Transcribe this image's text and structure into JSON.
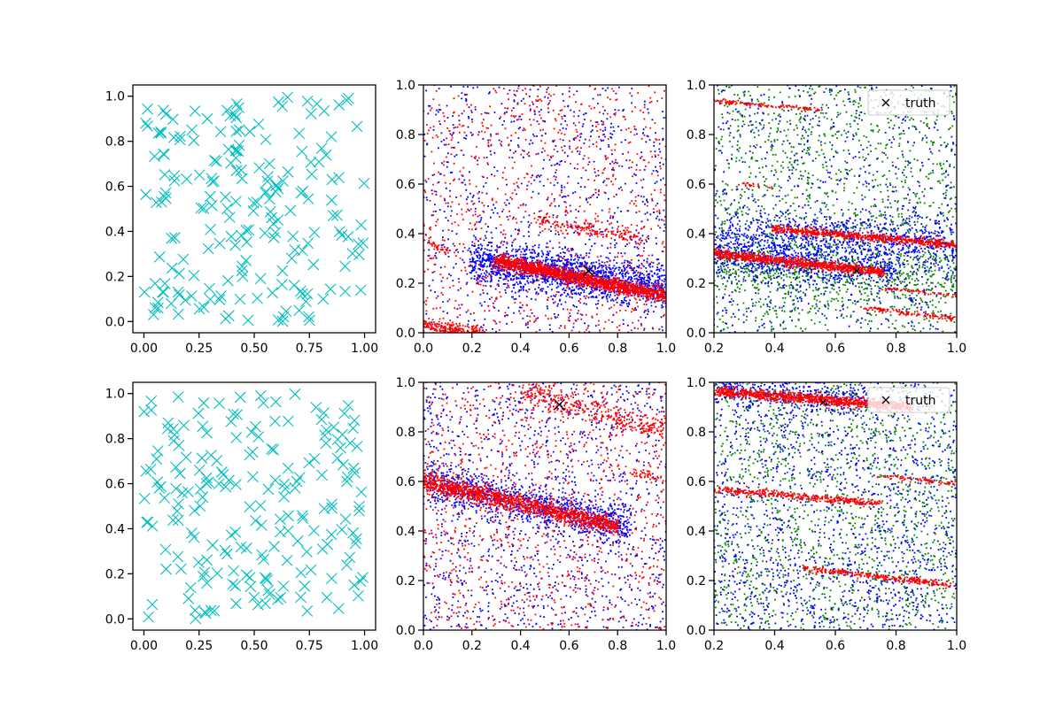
{
  "chart_data": [
    {
      "type": "scatter",
      "panel": "top-left",
      "xlim": [
        -0.05,
        1.05
      ],
      "ylim": [
        -0.05,
        1.05
      ],
      "xticks": [
        "0.00",
        "0.25",
        "0.50",
        "0.75",
        "1.00"
      ],
      "xtick_values": [
        0,
        0.25,
        0.5,
        0.75,
        1
      ],
      "yticks": [
        "0.0",
        "0.2",
        "0.4",
        "0.6",
        "0.8",
        "1.0"
      ],
      "ytick_values": [
        0,
        0.2,
        0.4,
        0.6,
        0.8,
        1
      ],
      "series": [
        {
          "marker": "x",
          "color": "#00bfbf",
          "distribution": "uniform",
          "count": 200,
          "seed": 11
        }
      ]
    },
    {
      "type": "scatter",
      "panel": "top-middle",
      "xlim": [
        0,
        1
      ],
      "ylim": [
        0,
        1
      ],
      "xticks": [
        "0.0",
        "0.2",
        "0.4",
        "0.6",
        "0.8",
        "1.0"
      ],
      "xtick_values": [
        0,
        0.2,
        0.4,
        0.6,
        0.8,
        1
      ],
      "yticks": [
        "0.0",
        "0.2",
        "0.4",
        "0.6",
        "0.8",
        "1.0"
      ],
      "ytick_values": [
        0,
        0.2,
        0.4,
        0.6,
        0.8,
        1
      ],
      "series": [
        {
          "color": "#0000ff",
          "uniform_count": 900,
          "bands": [
            {
              "x0": 0.2,
              "x1": 1.0,
              "y0": 0.29,
              "y1": 0.18,
              "spread": 0.045,
              "count": 1600
            }
          ],
          "seed": 21
        },
        {
          "color": "#ff0000",
          "uniform_count": 900,
          "bands": [
            {
              "x0": 0.3,
              "x1": 1.0,
              "y0": 0.29,
              "y1": 0.15,
              "spread": 0.014,
              "count": 1500
            },
            {
              "x0": 0.0,
              "x1": 0.25,
              "y0": 0.03,
              "y1": 0.0,
              "spread": 0.012,
              "count": 220
            },
            {
              "x0": 0.45,
              "x1": 0.9,
              "y0": 0.46,
              "y1": 0.38,
              "spread": 0.014,
              "count": 160
            },
            {
              "x0": 0.0,
              "x1": 0.1,
              "y0": 0.38,
              "y1": 0.32,
              "spread": 0.01,
              "count": 40
            }
          ],
          "seed": 22
        }
      ],
      "truth": {
        "x": 0.68,
        "y": 0.25,
        "marker": "x",
        "color": "#000000",
        "size": "large"
      }
    },
    {
      "type": "scatter",
      "panel": "top-right",
      "xlim": [
        0.2,
        1
      ],
      "ylim": [
        0,
        1
      ],
      "xticks": [
        "0.2",
        "0.4",
        "0.6",
        "0.8",
        "1.0"
      ],
      "xtick_values": [
        0.2,
        0.4,
        0.6,
        0.8,
        1
      ],
      "yticks": [
        "0.0",
        "0.2",
        "0.4",
        "0.6",
        "0.8",
        "1.0"
      ],
      "ytick_values": [
        0,
        0.2,
        0.4,
        0.6,
        0.8,
        1
      ],
      "series": [
        {
          "color": "#008000",
          "uniform_count": 1500,
          "bands": [
            {
              "x0": 0.2,
              "x1": 1.0,
              "y0": 0.27,
              "y1": 0.22,
              "spread": 0.06,
              "count": 500
            }
          ],
          "seed": 31
        },
        {
          "color": "#0000ff",
          "uniform_count": 700,
          "bands": [
            {
              "x0": 0.2,
              "x1": 1.0,
              "y0": 0.38,
              "y1": 0.36,
              "spread": 0.06,
              "count": 900
            },
            {
              "x0": 0.2,
              "x1": 0.8,
              "y0": 0.3,
              "y1": 0.25,
              "spread": 0.04,
              "count": 400
            }
          ],
          "seed": 32
        },
        {
          "color": "#ff0000",
          "uniform_count": 0,
          "bands": [
            {
              "x0": 0.2,
              "x1": 0.75,
              "y0": 0.32,
              "y1": 0.245,
              "spread": 0.009,
              "count": 900
            },
            {
              "x0": 0.4,
              "x1": 1.0,
              "y0": 0.42,
              "y1": 0.355,
              "spread": 0.008,
              "count": 650
            },
            {
              "x0": 0.2,
              "x1": 0.55,
              "y0": 0.935,
              "y1": 0.9,
              "spread": 0.004,
              "count": 120
            },
            {
              "x0": 0.7,
              "x1": 1.0,
              "y0": 0.1,
              "y1": 0.055,
              "spread": 0.005,
              "count": 120
            },
            {
              "x0": 0.75,
              "x1": 1.0,
              "y0": 0.18,
              "y1": 0.15,
              "spread": 0.003,
              "count": 60
            },
            {
              "x0": 0.28,
              "x1": 0.38,
              "y0": 0.6,
              "y1": 0.59,
              "spread": 0.003,
              "count": 20
            }
          ],
          "seed": 33
        }
      ],
      "truth": {
        "x": 0.67,
        "y": 0.25,
        "marker": "x",
        "color": "#000000",
        "size": "small"
      },
      "legend": {
        "label": "truth",
        "loc": "upper right"
      }
    },
    {
      "type": "scatter",
      "panel": "bottom-left",
      "xlim": [
        -0.05,
        1.05
      ],
      "ylim": [
        -0.05,
        1.05
      ],
      "xticks": [
        "0.00",
        "0.25",
        "0.50",
        "0.75",
        "1.00"
      ],
      "xtick_values": [
        0,
        0.25,
        0.5,
        0.75,
        1
      ],
      "yticks": [
        "0.0",
        "0.2",
        "0.4",
        "0.6",
        "0.8",
        "1.0"
      ],
      "ytick_values": [
        0,
        0.2,
        0.4,
        0.6,
        0.8,
        1
      ],
      "series": [
        {
          "marker": "x",
          "color": "#00bfbf",
          "distribution": "uniform",
          "count": 200,
          "seed": 41
        }
      ]
    },
    {
      "type": "scatter",
      "panel": "bottom-middle",
      "xlim": [
        0,
        1
      ],
      "ylim": [
        0,
        1
      ],
      "xticks": [
        "0.0",
        "0.2",
        "0.4",
        "0.6",
        "0.8",
        "1.0"
      ],
      "xtick_values": [
        0,
        0.2,
        0.4,
        0.6,
        0.8,
        1
      ],
      "yticks": [
        "0.0",
        "0.2",
        "0.4",
        "0.6",
        "0.8",
        "1.0"
      ],
      "ytick_values": [
        0,
        0.2,
        0.4,
        0.6,
        0.8,
        1
      ],
      "series": [
        {
          "color": "#0000ff",
          "uniform_count": 1200,
          "bands": [
            {
              "x0": 0.0,
              "x1": 0.85,
              "y0": 0.6,
              "y1": 0.42,
              "spread": 0.04,
              "count": 1000
            }
          ],
          "seed": 51
        },
        {
          "color": "#ff0000",
          "uniform_count": 1000,
          "bands": [
            {
              "x0": 0.0,
              "x1": 0.8,
              "y0": 0.6,
              "y1": 0.42,
              "spread": 0.018,
              "count": 1300
            },
            {
              "x0": 0.4,
              "x1": 1.0,
              "y0": 0.97,
              "y1": 0.8,
              "spread": 0.025,
              "count": 350
            },
            {
              "x0": 0.85,
              "x1": 1.0,
              "y0": 0.64,
              "y1": 0.6,
              "spread": 0.01,
              "count": 40
            }
          ],
          "seed": 52
        }
      ],
      "truth": {
        "x": 0.56,
        "y": 0.91,
        "marker": "x",
        "color": "#000000",
        "size": "large"
      }
    },
    {
      "type": "scatter",
      "panel": "bottom-right",
      "xlim": [
        0.2,
        1
      ],
      "ylim": [
        0,
        1
      ],
      "xticks": [
        "0.2",
        "0.4",
        "0.6",
        "0.8",
        "1.0"
      ],
      "xtick_values": [
        0.2,
        0.4,
        0.6,
        0.8,
        1
      ],
      "yticks": [
        "0.0",
        "0.2",
        "0.4",
        "0.6",
        "0.8",
        "1.0"
      ],
      "ytick_values": [
        0,
        0.2,
        0.4,
        0.6,
        0.8,
        1
      ],
      "series": [
        {
          "color": "#008000",
          "uniform_count": 1500,
          "bands": [],
          "seed": 61
        },
        {
          "color": "#0000ff",
          "uniform_count": 1400,
          "bands": [
            {
              "x0": 0.2,
              "x1": 0.7,
              "y0": 0.98,
              "y1": 0.93,
              "spread": 0.03,
              "count": 300
            }
          ],
          "seed": 62
        },
        {
          "color": "#ff0000",
          "uniform_count": 0,
          "bands": [
            {
              "x0": 0.2,
              "x1": 0.85,
              "y0": 0.965,
              "y1": 0.9,
              "spread": 0.01,
              "count": 1000
            },
            {
              "x0": 0.2,
              "x1": 0.75,
              "y0": 0.57,
              "y1": 0.51,
              "spread": 0.008,
              "count": 350
            },
            {
              "x0": 0.5,
              "x1": 1.0,
              "y0": 0.25,
              "y1": 0.18,
              "spread": 0.006,
              "count": 260
            },
            {
              "x0": 0.75,
              "x1": 1.0,
              "y0": 0.62,
              "y1": 0.59,
              "spread": 0.005,
              "count": 70
            }
          ],
          "seed": 63
        }
      ],
      "truth": {
        "x": 0.56,
        "y": 0.92,
        "marker": "x",
        "color": "#000000",
        "size": "small"
      },
      "legend": {
        "label": "truth",
        "loc": "upper right"
      }
    }
  ]
}
